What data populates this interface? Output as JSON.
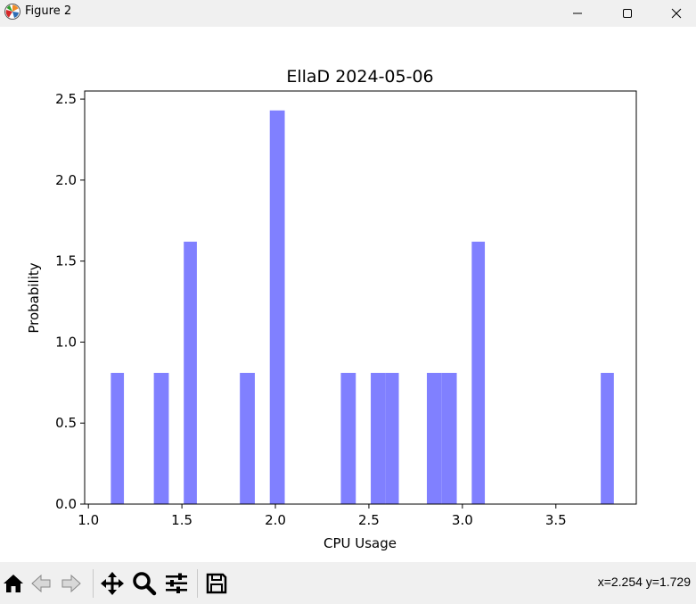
{
  "window": {
    "title": "Figure 2",
    "app_icon": "matplotlib-icon",
    "controls": [
      "minimize-icon",
      "maximize-icon",
      "close-icon"
    ]
  },
  "toolbar": {
    "tools": [
      "home-icon",
      "back-arrow-icon",
      "forward-arrow-icon",
      "pan-icon",
      "zoom-icon",
      "configure-subplots-icon",
      "save-icon"
    ],
    "coords": "x=2.254 y=1.729"
  },
  "chart_data": {
    "type": "bar",
    "title": "EllaD 2024-05-06",
    "xlabel": "CPU Usage",
    "ylabel": "Probability",
    "xlim": [
      0.98,
      3.93
    ],
    "ylim": [
      0,
      2.55
    ],
    "xticks": [
      1.0,
      1.5,
      2.0,
      2.5,
      3.0,
      3.5
    ],
    "xtick_labels": [
      "1.0",
      "1.5",
      "2.0",
      "2.5",
      "3.0",
      "3.5"
    ],
    "yticks": [
      0.0,
      0.5,
      1.0,
      1.5,
      2.0,
      2.5
    ],
    "ytick_labels": [
      "0.0",
      "0.5",
      "1.0",
      "1.5",
      "2.0",
      "2.5"
    ],
    "color": "#8080ff",
    "bars": [
      {
        "left": 1.12,
        "right": 1.19,
        "value": 0.81
      },
      {
        "left": 1.35,
        "right": 1.43,
        "value": 0.81
      },
      {
        "left": 1.51,
        "right": 1.58,
        "value": 1.62
      },
      {
        "left": 1.81,
        "right": 1.89,
        "value": 0.81
      },
      {
        "left": 1.97,
        "right": 2.05,
        "value": 2.43
      },
      {
        "left": 2.35,
        "right": 2.43,
        "value": 0.81
      },
      {
        "left": 2.51,
        "right": 2.59,
        "value": 0.81
      },
      {
        "left": 2.59,
        "right": 2.66,
        "value": 0.81
      },
      {
        "left": 2.81,
        "right": 2.89,
        "value": 0.81
      },
      {
        "left": 2.89,
        "right": 2.97,
        "value": 0.81
      },
      {
        "left": 3.05,
        "right": 3.12,
        "value": 1.62
      },
      {
        "left": 3.74,
        "right": 3.81,
        "value": 0.81
      }
    ]
  }
}
